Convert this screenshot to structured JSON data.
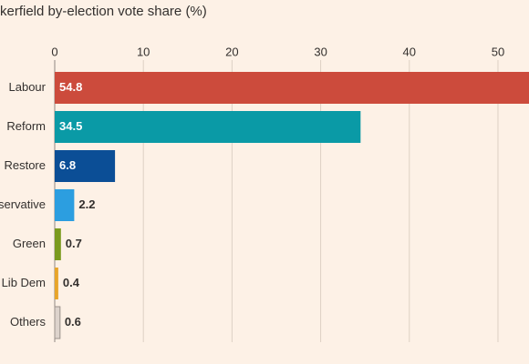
{
  "chart_data": {
    "type": "hbar",
    "title": "kerfield by-election vote share (%)",
    "categories": [
      "Labour",
      "Reform",
      "Restore",
      "servative",
      "Green",
      "Lib Dem",
      "Others"
    ],
    "values": [
      54.8,
      34.5,
      6.8,
      2.2,
      0.7,
      0.4,
      0.6
    ],
    "colors": [
      "#cc4b3c",
      "#0a9aa6",
      "#0b4e96",
      "#2c9ee0",
      "#7a9a1d",
      "#e8a52a",
      "#ddd3cc"
    ],
    "xlim": [
      0,
      53.5
    ],
    "xticks": [
      0,
      10,
      20,
      30,
      40,
      50
    ],
    "grid": true
  }
}
